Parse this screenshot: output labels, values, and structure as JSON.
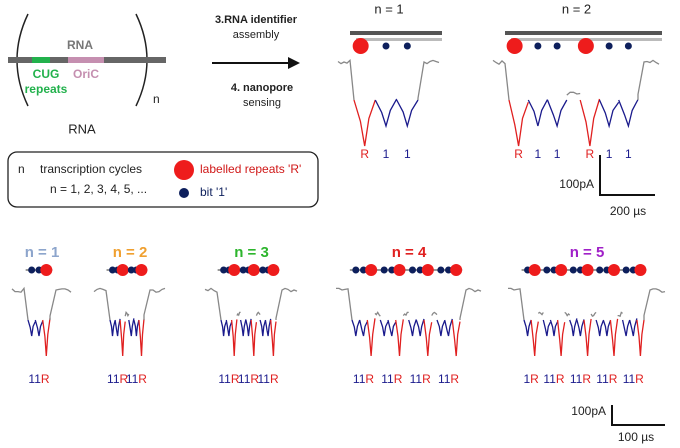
{
  "schematic": {
    "rna_bar": "RNA",
    "cug": [
      "CUG",
      "repeats"
    ],
    "oric": "OriC",
    "cycles": "n",
    "rna_caption": "RNA"
  },
  "arrow": {
    "step3": [
      "3.RNA identifier",
      "assembly"
    ],
    "step4": [
      "4. nanopore",
      "sensing"
    ]
  },
  "legend": {
    "symbol": "n",
    "cycles": "transcription cycles",
    "values": "n = 1, 2, 3, 4, 5, ...",
    "repeat": "labelled repeats 'R'",
    "bit": "bit '1'"
  },
  "top_panels": [
    {
      "title": "n = 1",
      "labels": [
        "R",
        "1",
        "1"
      ]
    },
    {
      "title": "n = 2",
      "labels": [
        "R",
        "1",
        "1",
        "R",
        "1",
        "1"
      ]
    }
  ],
  "top_scale": {
    "current": "100pA",
    "time": "200 µs"
  },
  "bottom_panels": [
    {
      "title": "n = 1",
      "color": "#8da5cc",
      "labels": [
        {
          "bits": "11",
          "repeat": "R"
        }
      ]
    },
    {
      "title": "n = 2",
      "color": "#f0a030",
      "labels": [
        {
          "bits": "11",
          "repeat": "R"
        },
        {
          "bits": "11",
          "repeat": "R"
        }
      ]
    },
    {
      "title": "n = 3",
      "color": "#2db52d",
      "labels": [
        {
          "bits": "11",
          "repeat": "R"
        },
        {
          "bits": "11",
          "repeat": "R"
        },
        {
          "bits": "11",
          "repeat": "R"
        }
      ]
    },
    {
      "title": "n = 4",
      "color": "#e02020",
      "labels": [
        {
          "bits": "11",
          "repeat": "R"
        },
        {
          "bits": "11",
          "repeat": "R"
        },
        {
          "bits": "11",
          "repeat": "R"
        },
        {
          "bits": "11",
          "repeat": "R"
        }
      ]
    },
    {
      "title": "n = 5",
      "color": "#a020c8",
      "labels": [
        {
          "bits": "1",
          "repeat": "R"
        },
        {
          "bits": "11",
          "repeat": "R"
        },
        {
          "bits": "11",
          "repeat": "R"
        },
        {
          "bits": "11",
          "repeat": "R"
        },
        {
          "bits": "11",
          "repeat": "R"
        }
      ]
    }
  ],
  "bottom_scale": {
    "current": "100pA",
    "time": "100 µs"
  }
}
